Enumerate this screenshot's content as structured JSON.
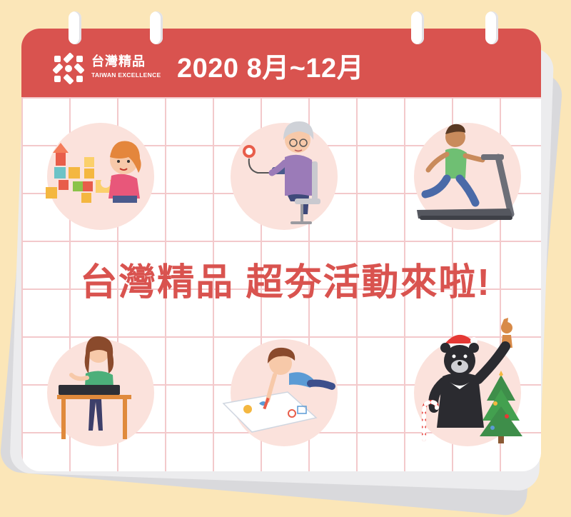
{
  "brand": {
    "name_cn": "台灣精品",
    "name_en": "TAIWAN EXCELLENCE"
  },
  "header": {
    "date_range": "2020 8月~12月"
  },
  "headline": "台灣精品 超夯活動來啦!",
  "illustrations": [
    {
      "icon": "child-playing-blocks-icon"
    },
    {
      "icon": "grandma-blood-pressure-icon"
    },
    {
      "icon": "man-treadmill-icon"
    },
    {
      "icon": "woman-drawing-tablet-icon"
    },
    {
      "icon": "boy-drawing-floor-icon"
    },
    {
      "icon": "christmas-bear-icon"
    }
  ],
  "colors": {
    "background": "#fbe6b8",
    "accent_red": "#d9534f",
    "grid_line": "#f3c9cb",
    "circle_fill": "#fbe2dc"
  }
}
